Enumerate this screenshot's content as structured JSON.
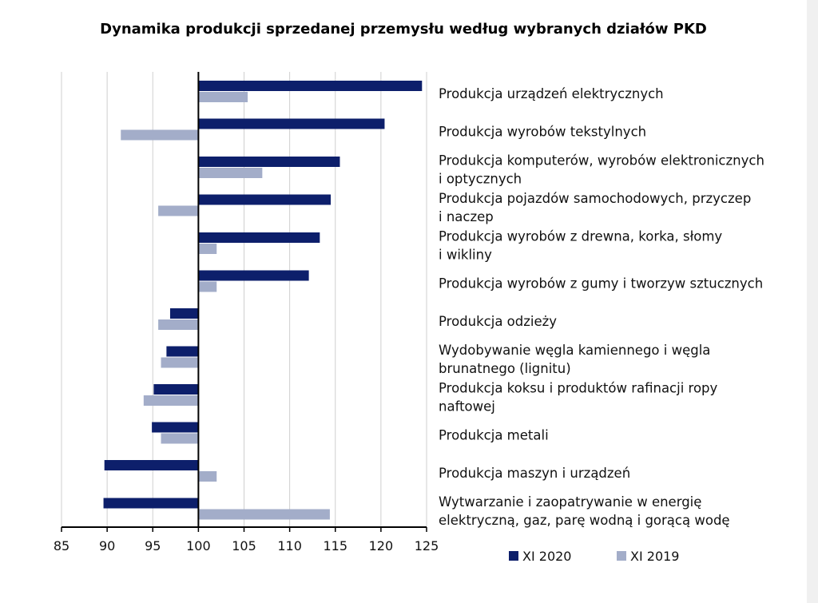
{
  "chart_data": {
    "type": "bar",
    "orientation": "horizontal",
    "title": "Dynamika produkcji sprzedanej przemysłu według wybranych działów PKD",
    "xlabel": "",
    "ylabel": "",
    "xlim": [
      85,
      125
    ],
    "baseline": 100,
    "ticks": [
      85,
      90,
      95,
      100,
      105,
      110,
      115,
      120,
      125
    ],
    "grid": "vertical",
    "legend": "bottom-right",
    "categories": [
      [
        "Produkcja urządzeń elektrycznych"
      ],
      [
        "Produkcja wyrobów tekstylnych"
      ],
      [
        "Produkcja komputerów, wyrobów elektronicznych",
        "i optycznych"
      ],
      [
        "Produkcja pojazdów samochodowych, przyczep",
        "i naczep"
      ],
      [
        "Produkcja wyrobów z drewna, korka, słomy",
        "i wikliny"
      ],
      [
        "Produkcja wyrobów z gumy i tworzyw sztucznych"
      ],
      [
        "Produkcja odzieży"
      ],
      [
        "Wydobywanie węgla kamiennego i węgla",
        "brunatnego (lignitu)"
      ],
      [
        "Produkcja koksu i produktów rafinacji ropy",
        "naftowej"
      ],
      [
        "Produkcja metali"
      ],
      [
        "Produkcja maszyn i urządzeń"
      ],
      [
        "Wytwarzanie i zaopatrywanie w energię",
        "elektryczną, gaz, parę wodną i gorącą wodę"
      ]
    ],
    "series": [
      {
        "name": "XI 2020",
        "color": "#0d1f6b",
        "values": [
          124.5,
          120.4,
          115.5,
          114.5,
          113.3,
          112.1,
          96.9,
          96.5,
          95.1,
          94.9,
          89.7,
          89.6
        ]
      },
      {
        "name": "XI 2019",
        "color": "#a3adc9",
        "values": [
          105.4,
          91.5,
          107.0,
          95.6,
          102.0,
          102.0,
          95.6,
          95.9,
          94.0,
          95.9,
          102.0,
          114.4
        ]
      }
    ]
  }
}
